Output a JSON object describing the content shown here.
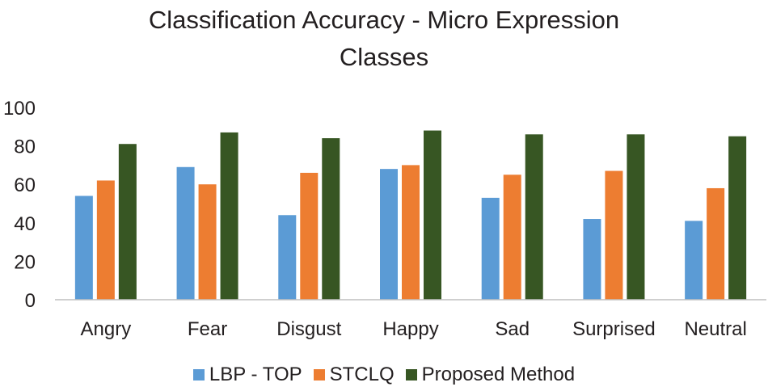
{
  "chart_data": {
    "type": "bar",
    "title_lines": [
      "Classification Accuracy - Micro Expression",
      "Classes"
    ],
    "xlabel": "",
    "ylabel": "",
    "ylim": [
      0,
      100
    ],
    "yticks": [
      "0",
      "20",
      "40",
      "60",
      "80",
      "100"
    ],
    "grid": false,
    "legend_position": "bottom",
    "categories": [
      "Angry",
      "Fear",
      "Disgust",
      "Happy",
      "Sad",
      "Surprised",
      "Neutral"
    ],
    "series": [
      {
        "name": "LBP - TOP",
        "color": "#5b9bd5",
        "values": [
          54,
          69,
          44,
          68,
          53,
          42,
          41
        ]
      },
      {
        "name": "STCLQ",
        "color": "#ed7d31",
        "values": [
          62,
          60,
          66,
          70,
          65,
          67,
          58
        ]
      },
      {
        "name": "Proposed Method",
        "color": "#375623",
        "values": [
          81,
          87,
          84,
          88,
          86,
          86,
          85
        ]
      }
    ]
  }
}
